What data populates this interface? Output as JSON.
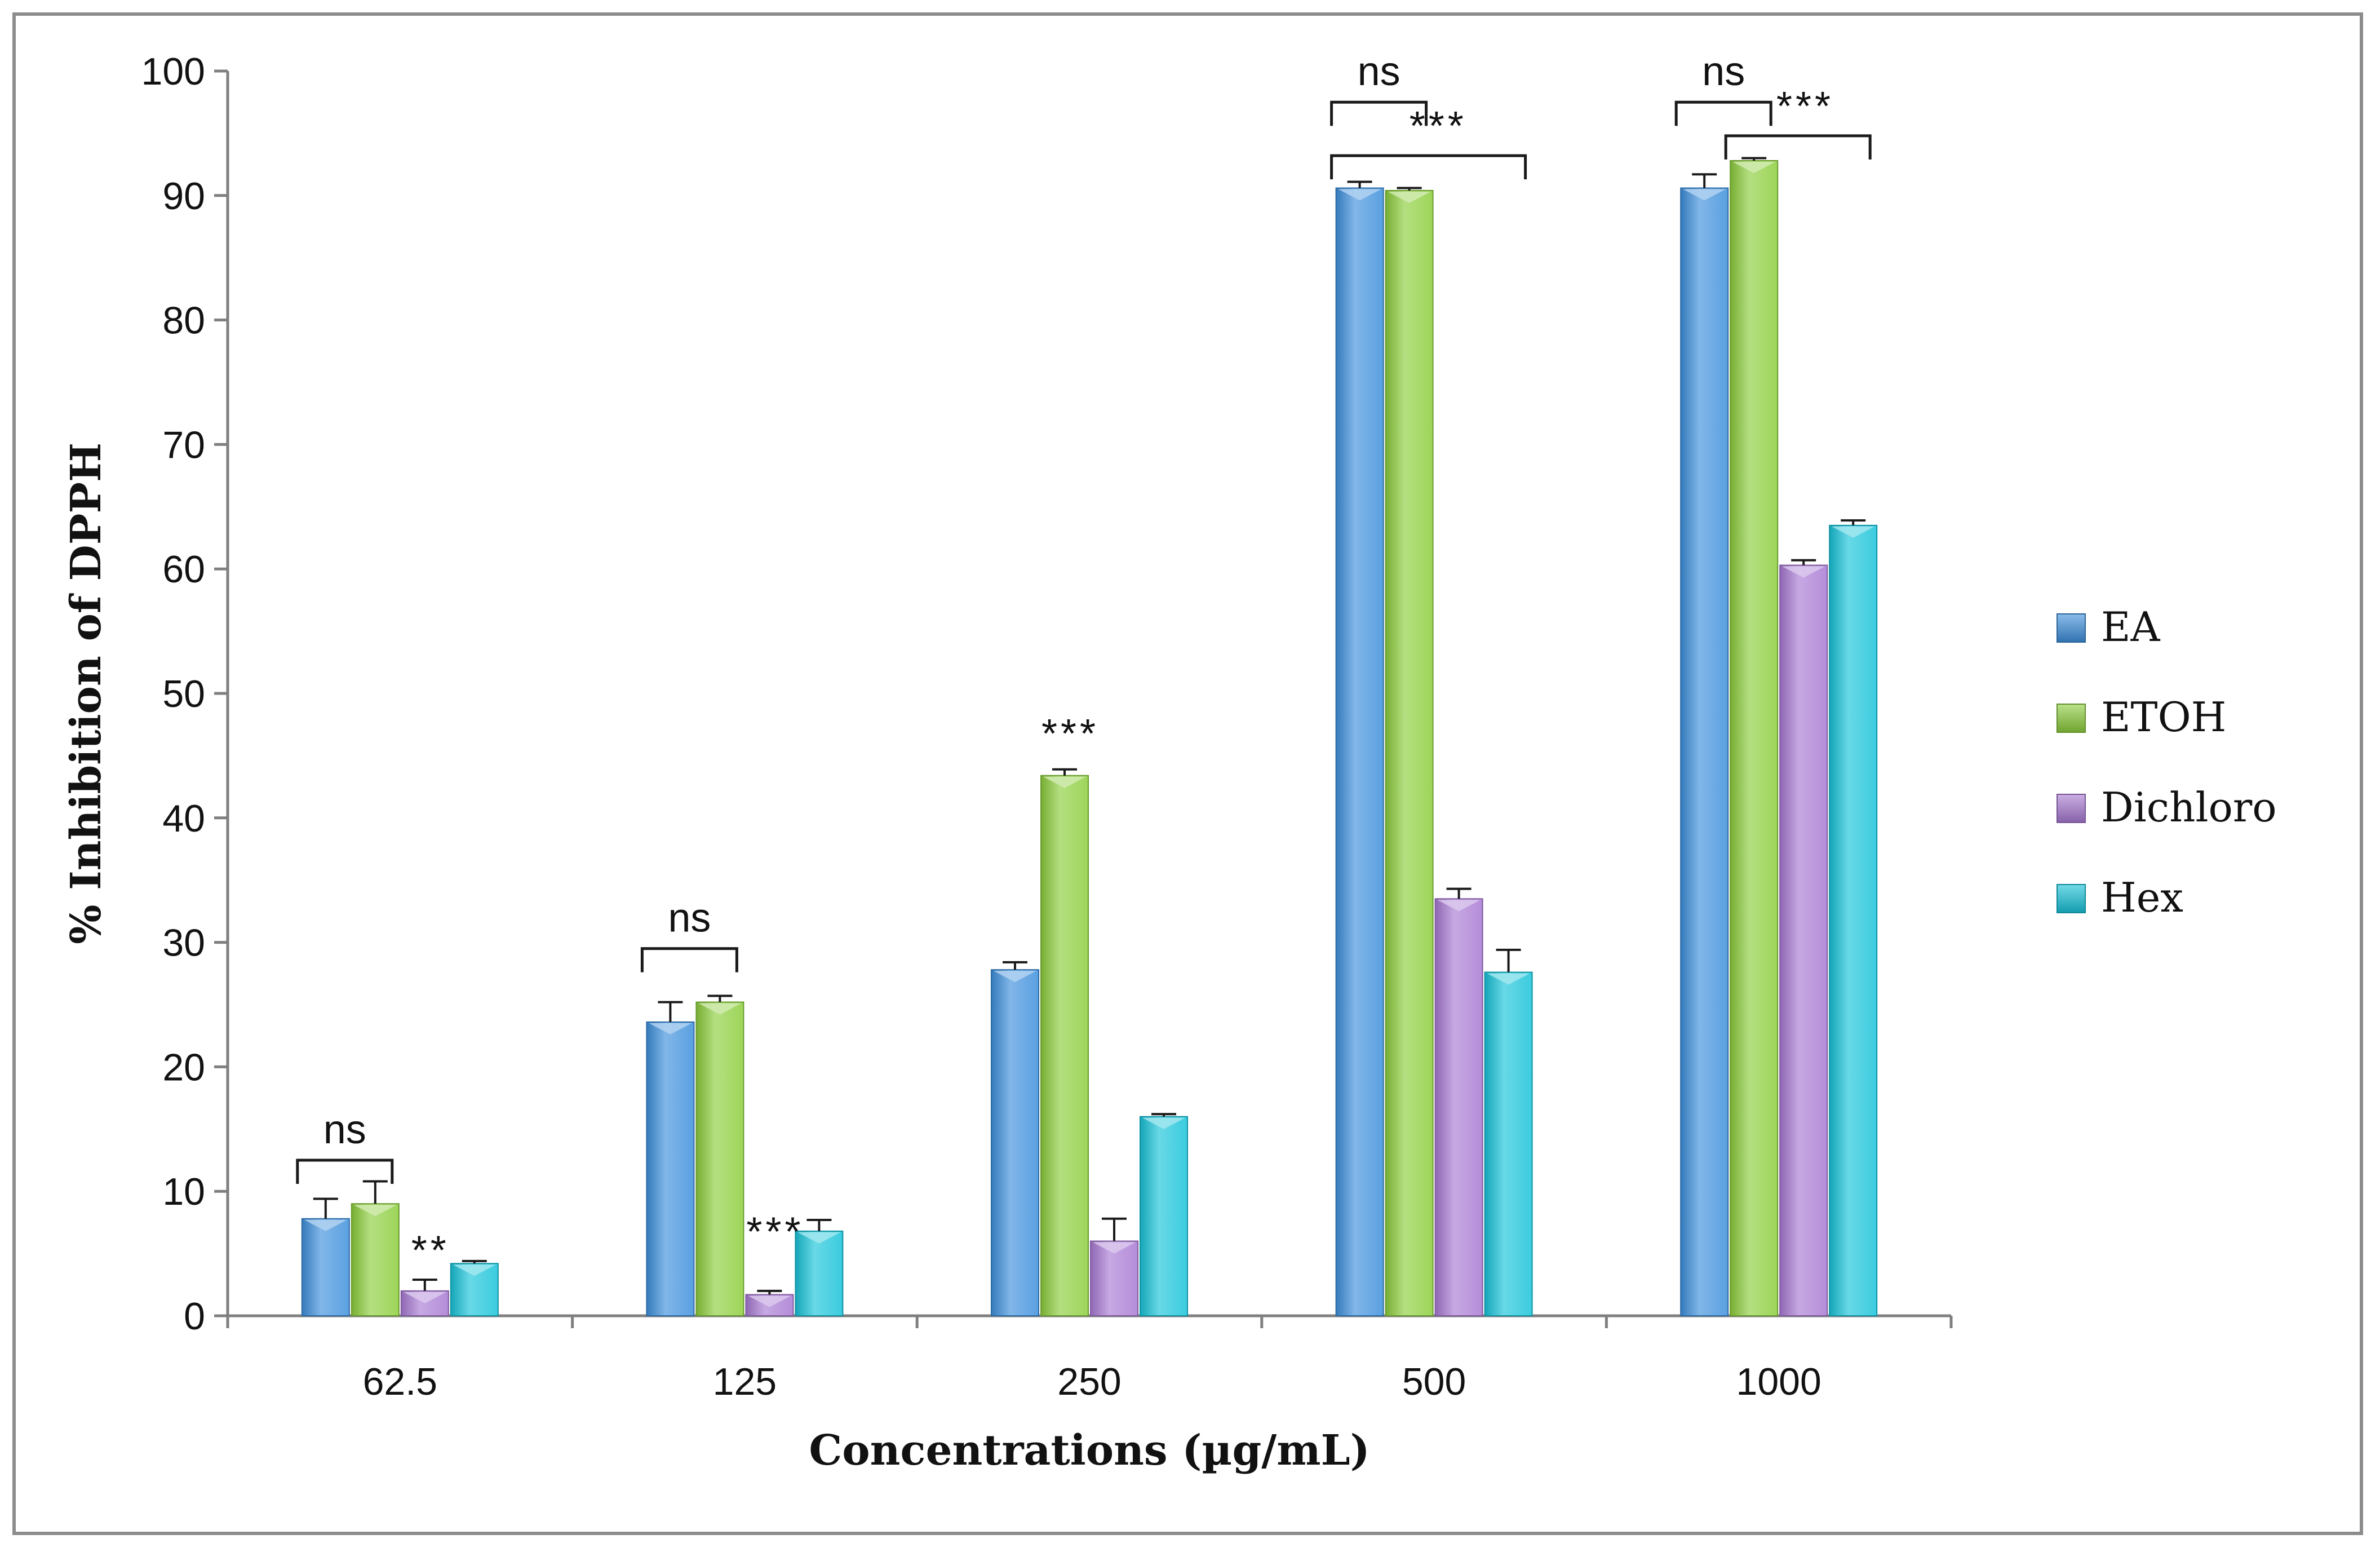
{
  "chart_data": {
    "type": "bar",
    "title": "",
    "xlabel": "Concentrations (µg/mL)",
    "ylabel": "% Inhibition of DPPH",
    "ylim": [
      0,
      100
    ],
    "yticks": [
      "0",
      "10",
      "20",
      "30",
      "40",
      "50",
      "60",
      "70",
      "80",
      "90",
      "100"
    ],
    "categories": [
      "62.5",
      "125",
      "250",
      "500",
      "1000"
    ],
    "legend_position": "right",
    "series": [
      {
        "name": "EA",
        "color": "#3d8fdc",
        "values": [
          7.8,
          23.6,
          27.8,
          90.6,
          90.6
        ],
        "errors": [
          1.6,
          1.6,
          0.6,
          0.5,
          1.1
        ]
      },
      {
        "name": "ETOH",
        "color": "#8ccd3c",
        "values": [
          9.0,
          25.2,
          43.4,
          90.4,
          92.8
        ],
        "errors": [
          1.8,
          0.5,
          0.5,
          0.2,
          0.2
        ]
      },
      {
        "name": "Dichloro",
        "color": "#a879d2",
        "values": [
          2.0,
          1.7,
          6.0,
          33.5,
          60.3
        ],
        "errors": [
          0.9,
          0.3,
          1.8,
          0.8,
          0.4
        ]
      },
      {
        "name": "Hex",
        "color": "#17c3d9",
        "values": [
          4.2,
          6.8,
          16.0,
          27.6,
          63.5
        ],
        "errors": [
          0.2,
          0.9,
          0.2,
          1.8,
          0.4
        ]
      }
    ],
    "annotations": [
      {
        "text": "ns",
        "category": 0,
        "from_series": 0,
        "to_series": 1,
        "bracket": true,
        "level": 12.5
      },
      {
        "text": "**",
        "category": 0,
        "series": 2,
        "bracket": false,
        "level": 5.5
      },
      {
        "text": "ns",
        "category": 1,
        "from_series": 0,
        "to_series": 1,
        "bracket": true,
        "level": 29.5
      },
      {
        "text": "***",
        "category": 1,
        "series": 2,
        "bracket": false,
        "level": 7.0
      },
      {
        "text": "***",
        "category": 2,
        "series": 1,
        "bracket": false,
        "level": 47.0
      },
      {
        "text": "ns",
        "category": 3,
        "from_series": 0,
        "to_series": 1,
        "bracket": true,
        "level": 97.5
      },
      {
        "text": "***",
        "category": 3,
        "from_series": 0,
        "to_series": 3,
        "bracket": true,
        "level": 93.2
      },
      {
        "text": "ns",
        "category": 4,
        "from_series": 0,
        "to_series": 1,
        "bracket": true,
        "level": 97.5
      },
      {
        "text": "***",
        "category": 4,
        "from_series": 1,
        "to_series": 3,
        "bracket": true,
        "level": 94.8
      }
    ]
  }
}
